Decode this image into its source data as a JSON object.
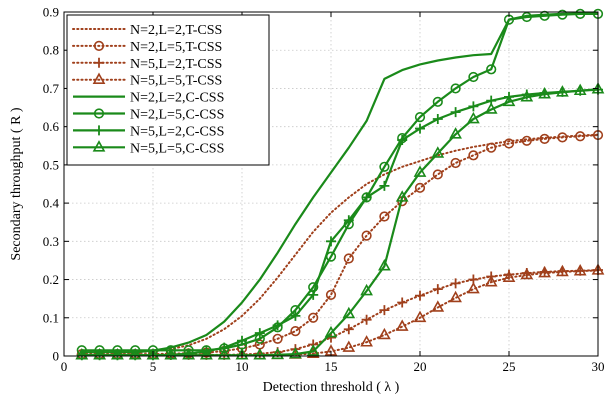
{
  "chart_data": {
    "type": "line",
    "xlabel": "Detection threshold ( λ )",
    "ylabel": "Secondary throughput ( R )",
    "xlim": [
      0,
      30
    ],
    "ylim": [
      0,
      0.9
    ],
    "xticks": [
      "0",
      "5",
      "10",
      "15",
      "20",
      "25",
      "30"
    ],
    "yticks": [
      "0",
      "0.1",
      "0.2",
      "0.3",
      "0.4",
      "0.5",
      "0.6",
      "0.7",
      "0.8",
      "0.9"
    ],
    "grid": true,
    "legend_position": "top-left",
    "x": [
      1,
      2,
      3,
      4,
      5,
      6,
      7,
      8,
      9,
      10,
      11,
      12,
      13,
      14,
      15,
      16,
      17,
      18,
      19,
      20,
      21,
      22,
      23,
      24,
      25,
      26,
      27,
      28,
      29,
      30
    ],
    "series": [
      {
        "name": "N=2,L=2,T-CSS",
        "color": "#a0401c",
        "line": "dotted",
        "marker": "none",
        "values": [
          0.01,
          0.01,
          0.01,
          0.01,
          0.012,
          0.018,
          0.028,
          0.045,
          0.07,
          0.105,
          0.15,
          0.205,
          0.265,
          0.325,
          0.375,
          0.415,
          0.45,
          0.475,
          0.495,
          0.51,
          0.525,
          0.537,
          0.547,
          0.555,
          0.562,
          0.567,
          0.571,
          0.574,
          0.577,
          0.579
        ]
      },
      {
        "name": "N=2,L=5,T-CSS",
        "color": "#a0401c",
        "line": "dotted",
        "marker": "circle",
        "values": [
          0.005,
          0.005,
          0.005,
          0.005,
          0.005,
          0.006,
          0.007,
          0.009,
          0.013,
          0.02,
          0.03,
          0.045,
          0.065,
          0.1,
          0.16,
          0.255,
          0.315,
          0.365,
          0.405,
          0.44,
          0.475,
          0.505,
          0.525,
          0.545,
          0.556,
          0.563,
          0.568,
          0.572,
          0.575,
          0.578
        ]
      },
      {
        "name": "N=5,L=2,T-CSS",
        "color": "#a0401c",
        "line": "dotted",
        "marker": "plus",
        "values": [
          0.003,
          0.003,
          0.003,
          0.003,
          0.003,
          0.003,
          0.003,
          0.003,
          0.003,
          0.004,
          0.006,
          0.01,
          0.018,
          0.03,
          0.048,
          0.07,
          0.095,
          0.12,
          0.14,
          0.158,
          0.175,
          0.19,
          0.2,
          0.208,
          0.213,
          0.217,
          0.22,
          0.222,
          0.223,
          0.225
        ]
      },
      {
        "name": "N=5,L=5,T-CSS",
        "color": "#a0401c",
        "line": "dotted",
        "marker": "triangle",
        "values": [
          0.002,
          0.002,
          0.002,
          0.002,
          0.002,
          0.002,
          0.002,
          0.002,
          0.002,
          0.002,
          0.002,
          0.003,
          0.004,
          0.006,
          0.012,
          0.022,
          0.036,
          0.055,
          0.077,
          0.1,
          0.127,
          0.152,
          0.175,
          0.193,
          0.205,
          0.212,
          0.217,
          0.22,
          0.222,
          0.224
        ]
      },
      {
        "name": "N=2,L=2,C-CSS",
        "color": "#1a8a1a",
        "line": "solid",
        "marker": "none",
        "values": [
          0.01,
          0.01,
          0.01,
          0.01,
          0.014,
          0.022,
          0.035,
          0.055,
          0.09,
          0.14,
          0.2,
          0.27,
          0.345,
          0.415,
          0.48,
          0.545,
          0.615,
          0.725,
          0.748,
          0.763,
          0.773,
          0.781,
          0.787,
          0.79,
          0.88,
          0.89,
          0.893,
          0.895,
          0.896,
          0.897
        ]
      },
      {
        "name": "N=2,L=5,C-CSS",
        "color": "#1a8a1a",
        "line": "solid",
        "marker": "circle",
        "values": [
          0.015,
          0.015,
          0.015,
          0.015,
          0.015,
          0.015,
          0.015,
          0.015,
          0.02,
          0.03,
          0.045,
          0.075,
          0.12,
          0.18,
          0.26,
          0.345,
          0.415,
          0.495,
          0.57,
          0.625,
          0.665,
          0.7,
          0.73,
          0.75,
          0.88,
          0.887,
          0.89,
          0.893,
          0.895,
          0.895
        ]
      },
      {
        "name": "N=5,L=2,C-CSS",
        "color": "#1a8a1a",
        "line": "solid",
        "marker": "plus",
        "values": [
          0.002,
          0.002,
          0.002,
          0.002,
          0.002,
          0.003,
          0.006,
          0.012,
          0.022,
          0.04,
          0.06,
          0.08,
          0.105,
          0.16,
          0.3,
          0.355,
          0.415,
          0.445,
          0.565,
          0.595,
          0.62,
          0.638,
          0.653,
          0.668,
          0.678,
          0.684,
          0.688,
          0.691,
          0.694,
          0.697
        ]
      },
      {
        "name": "N=5,L=5,C-CSS",
        "color": "#1a8a1a",
        "line": "solid",
        "marker": "triangle",
        "values": [
          0.002,
          0.002,
          0.002,
          0.002,
          0.002,
          0.002,
          0.002,
          0.002,
          0.002,
          0.002,
          0.002,
          0.003,
          0.005,
          0.012,
          0.06,
          0.11,
          0.17,
          0.235,
          0.415,
          0.48,
          0.53,
          0.58,
          0.62,
          0.645,
          0.665,
          0.677,
          0.685,
          0.69,
          0.694,
          0.698
        ]
      }
    ]
  }
}
